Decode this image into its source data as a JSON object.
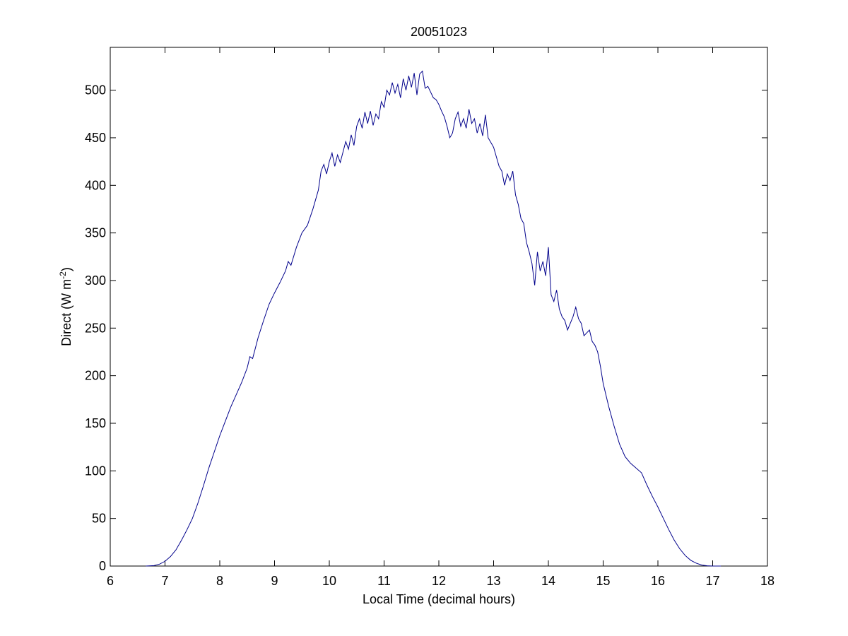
{
  "chart_data": {
    "type": "line",
    "title": "20051023",
    "xlabel": "Local Time (decimal hours)",
    "ylabel_main": "Direct (W m",
    "ylabel_sup": "-2",
    "ylabel_close": ")",
    "xlim": [
      6,
      18
    ],
    "ylim": [
      0,
      545
    ],
    "xticks": [
      6,
      7,
      8,
      9,
      10,
      11,
      12,
      13,
      14,
      15,
      16,
      17,
      18
    ],
    "yticks": [
      0,
      50,
      100,
      150,
      200,
      250,
      300,
      350,
      400,
      450,
      500
    ],
    "grid": false,
    "series": [
      {
        "color": "#00008b",
        "points": [
          [
            6.65,
            0
          ],
          [
            6.8,
            0.5
          ],
          [
            6.9,
            2
          ],
          [
            7.0,
            5
          ],
          [
            7.1,
            10
          ],
          [
            7.2,
            17
          ],
          [
            7.3,
            27
          ],
          [
            7.4,
            38
          ],
          [
            7.5,
            50
          ],
          [
            7.6,
            66
          ],
          [
            7.7,
            84
          ],
          [
            7.8,
            103
          ],
          [
            7.9,
            120
          ],
          [
            8.0,
            137
          ],
          [
            8.1,
            152
          ],
          [
            8.2,
            167
          ],
          [
            8.3,
            180
          ],
          [
            8.4,
            193
          ],
          [
            8.5,
            208
          ],
          [
            8.55,
            220
          ],
          [
            8.6,
            218
          ],
          [
            8.7,
            240
          ],
          [
            8.8,
            258
          ],
          [
            8.9,
            275
          ],
          [
            9.0,
            287
          ],
          [
            9.1,
            298
          ],
          [
            9.2,
            310
          ],
          [
            9.25,
            320
          ],
          [
            9.3,
            316
          ],
          [
            9.4,
            335
          ],
          [
            9.5,
            350
          ],
          [
            9.6,
            358
          ],
          [
            9.7,
            375
          ],
          [
            9.8,
            395
          ],
          [
            9.85,
            415
          ],
          [
            9.9,
            422
          ],
          [
            9.95,
            412
          ],
          [
            10.0,
            425
          ],
          [
            10.05,
            434
          ],
          [
            10.1,
            420
          ],
          [
            10.15,
            432
          ],
          [
            10.2,
            424
          ],
          [
            10.3,
            446
          ],
          [
            10.35,
            438
          ],
          [
            10.4,
            453
          ],
          [
            10.45,
            442
          ],
          [
            10.5,
            462
          ],
          [
            10.55,
            470
          ],
          [
            10.6,
            460
          ],
          [
            10.65,
            477
          ],
          [
            10.7,
            465
          ],
          [
            10.75,
            478
          ],
          [
            10.8,
            463
          ],
          [
            10.85,
            475
          ],
          [
            10.9,
            470
          ],
          [
            10.95,
            488
          ],
          [
            11.0,
            482
          ],
          [
            11.05,
            500
          ],
          [
            11.1,
            495
          ],
          [
            11.15,
            508
          ],
          [
            11.2,
            497
          ],
          [
            11.25,
            506
          ],
          [
            11.3,
            492
          ],
          [
            11.35,
            512
          ],
          [
            11.4,
            500
          ],
          [
            11.45,
            515
          ],
          [
            11.5,
            503
          ],
          [
            11.55,
            518
          ],
          [
            11.6,
            495
          ],
          [
            11.65,
            517
          ],
          [
            11.7,
            520
          ],
          [
            11.75,
            502
          ],
          [
            11.8,
            504
          ],
          [
            11.85,
            498
          ],
          [
            11.9,
            492
          ],
          [
            11.95,
            490
          ],
          [
            12.0,
            485
          ],
          [
            12.05,
            478
          ],
          [
            12.1,
            472
          ],
          [
            12.15,
            462
          ],
          [
            12.2,
            450
          ],
          [
            12.25,
            455
          ],
          [
            12.3,
            470
          ],
          [
            12.35,
            477
          ],
          [
            12.4,
            462
          ],
          [
            12.45,
            470
          ],
          [
            12.5,
            460
          ],
          [
            12.55,
            480
          ],
          [
            12.6,
            465
          ],
          [
            12.65,
            470
          ],
          [
            12.7,
            455
          ],
          [
            12.75,
            465
          ],
          [
            12.8,
            452
          ],
          [
            12.85,
            474
          ],
          [
            12.9,
            450
          ],
          [
            12.95,
            445
          ],
          [
            13.0,
            440
          ],
          [
            13.05,
            430
          ],
          [
            13.1,
            420
          ],
          [
            13.15,
            415
          ],
          [
            13.2,
            400
          ],
          [
            13.25,
            412
          ],
          [
            13.3,
            405
          ],
          [
            13.35,
            415
          ],
          [
            13.4,
            390
          ],
          [
            13.45,
            380
          ],
          [
            13.5,
            365
          ],
          [
            13.55,
            360
          ],
          [
            13.6,
            340
          ],
          [
            13.65,
            330
          ],
          [
            13.7,
            318
          ],
          [
            13.75,
            295
          ],
          [
            13.8,
            330
          ],
          [
            13.85,
            310
          ],
          [
            13.9,
            320
          ],
          [
            13.95,
            305
          ],
          [
            14.0,
            335
          ],
          [
            14.05,
            285
          ],
          [
            14.1,
            278
          ],
          [
            14.15,
            290
          ],
          [
            14.2,
            270
          ],
          [
            14.25,
            262
          ],
          [
            14.3,
            258
          ],
          [
            14.35,
            248
          ],
          [
            14.4,
            255
          ],
          [
            14.45,
            262
          ],
          [
            14.5,
            272
          ],
          [
            14.55,
            260
          ],
          [
            14.6,
            255
          ],
          [
            14.65,
            242
          ],
          [
            14.7,
            245
          ],
          [
            14.75,
            248
          ],
          [
            14.8,
            236
          ],
          [
            14.85,
            232
          ],
          [
            14.9,
            225
          ],
          [
            14.95,
            210
          ],
          [
            15.0,
            192
          ],
          [
            15.1,
            168
          ],
          [
            15.2,
            147
          ],
          [
            15.3,
            128
          ],
          [
            15.4,
            115
          ],
          [
            15.5,
            108
          ],
          [
            15.6,
            103
          ],
          [
            15.7,
            98
          ],
          [
            15.8,
            85
          ],
          [
            15.9,
            73
          ],
          [
            16.0,
            62
          ],
          [
            16.1,
            50
          ],
          [
            16.2,
            38
          ],
          [
            16.3,
            27
          ],
          [
            16.4,
            18
          ],
          [
            16.5,
            11
          ],
          [
            16.6,
            6
          ],
          [
            16.7,
            3
          ],
          [
            16.8,
            1
          ],
          [
            16.9,
            0.3
          ],
          [
            17.0,
            0
          ],
          [
            17.15,
            0
          ]
        ]
      }
    ]
  }
}
